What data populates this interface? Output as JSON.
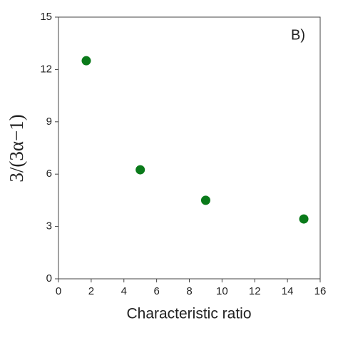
{
  "chart_data": {
    "type": "scatter",
    "x_label": "Characteristic ratio",
    "y_label": "3/(3α−1)",
    "annotation": "B)",
    "series": [
      {
        "color": "#0a7a1a",
        "x": [
          1.7,
          5,
          9,
          15
        ],
        "values": [
          12.5,
          6.25,
          4.5,
          3.43
        ]
      }
    ],
    "xlim": [
      0,
      16
    ],
    "xticks": [
      0,
      2,
      4,
      6,
      8,
      10,
      12,
      14,
      16
    ],
    "ylim": [
      0,
      15
    ],
    "yticks": [
      0,
      3,
      6,
      9,
      12,
      15
    ]
  }
}
